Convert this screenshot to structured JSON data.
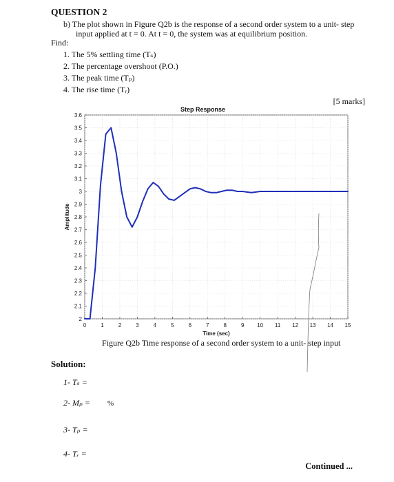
{
  "question": {
    "heading": "QUESTION 2",
    "part_line1": "b)  The plot shown in Figure Q2b is the response of a second order system to a unit- step",
    "part_line2": "input applied at t = 0.  At t = 0, the system was at equilibrium position.",
    "find_label": "Find:",
    "items": [
      "1.   The 5% settling time (Tₛ)",
      "2.   The percentage overshoot (P.O.)",
      "3.   The peak time (Tₚ)",
      "4.   The rise time (Tᵣ)"
    ],
    "marks": "[5 marks]"
  },
  "chart_data": {
    "type": "line",
    "title": "Step Response",
    "xlabel": "Time (sec)",
    "ylabel": "Amplitude",
    "xlim": [
      0,
      15
    ],
    "ylim": [
      2,
      3.6
    ],
    "xticks": [
      "0",
      "1",
      "2",
      "3",
      "4",
      "5",
      "6",
      "7",
      "8",
      "9",
      "10",
      "11",
      "12",
      "13",
      "14",
      "15"
    ],
    "yticks": [
      "2",
      "2.1",
      "2.2",
      "2.3",
      "2.4",
      "2.5",
      "2.6",
      "2.7",
      "2.8",
      "2.9",
      "3",
      "3.1",
      "3.2",
      "3.3",
      "3.4",
      "3.5",
      "3.6"
    ],
    "grid": true,
    "line_color": "#1f2fb8",
    "series": [
      {
        "x": [
          0,
          0.3,
          0.6,
          0.9,
          1.2,
          1.5,
          1.8,
          2.1,
          2.4,
          2.7,
          3.0,
          3.3,
          3.6,
          3.9,
          4.2,
          4.5,
          4.8,
          5.1,
          5.4,
          5.7,
          6.0,
          6.3,
          6.6,
          6.9,
          7.2,
          7.5,
          7.8,
          8.1,
          8.4,
          8.7,
          9.0,
          9.5,
          10,
          10.5,
          11,
          11.5,
          12,
          12.5,
          13,
          13.5,
          14,
          14.5,
          15
        ],
        "y": [
          2.0,
          2.0,
          2.4,
          3.05,
          3.45,
          3.5,
          3.3,
          3.0,
          2.8,
          2.72,
          2.8,
          2.92,
          3.02,
          3.07,
          3.04,
          2.98,
          2.94,
          2.93,
          2.96,
          2.99,
          3.02,
          3.03,
          3.02,
          3.0,
          2.99,
          2.99,
          3.0,
          3.01,
          3.01,
          3.0,
          3.0,
          2.99,
          3.0,
          3.0,
          3.0,
          3.0,
          3.0,
          3.0,
          3.0,
          3.0,
          3.0,
          3.0,
          3.0
        ]
      }
    ]
  },
  "figure_caption": "Figure Q2b Time response of a second order system to a unit- step input",
  "solution": {
    "heading": "Solution:",
    "answers": [
      "1-  Tₛ =",
      "2-  Mₚ =",
      "3-  Tₚ =",
      "4-  Tᵣ ="
    ],
    "percent": "%"
  },
  "footer": "Continued ..."
}
